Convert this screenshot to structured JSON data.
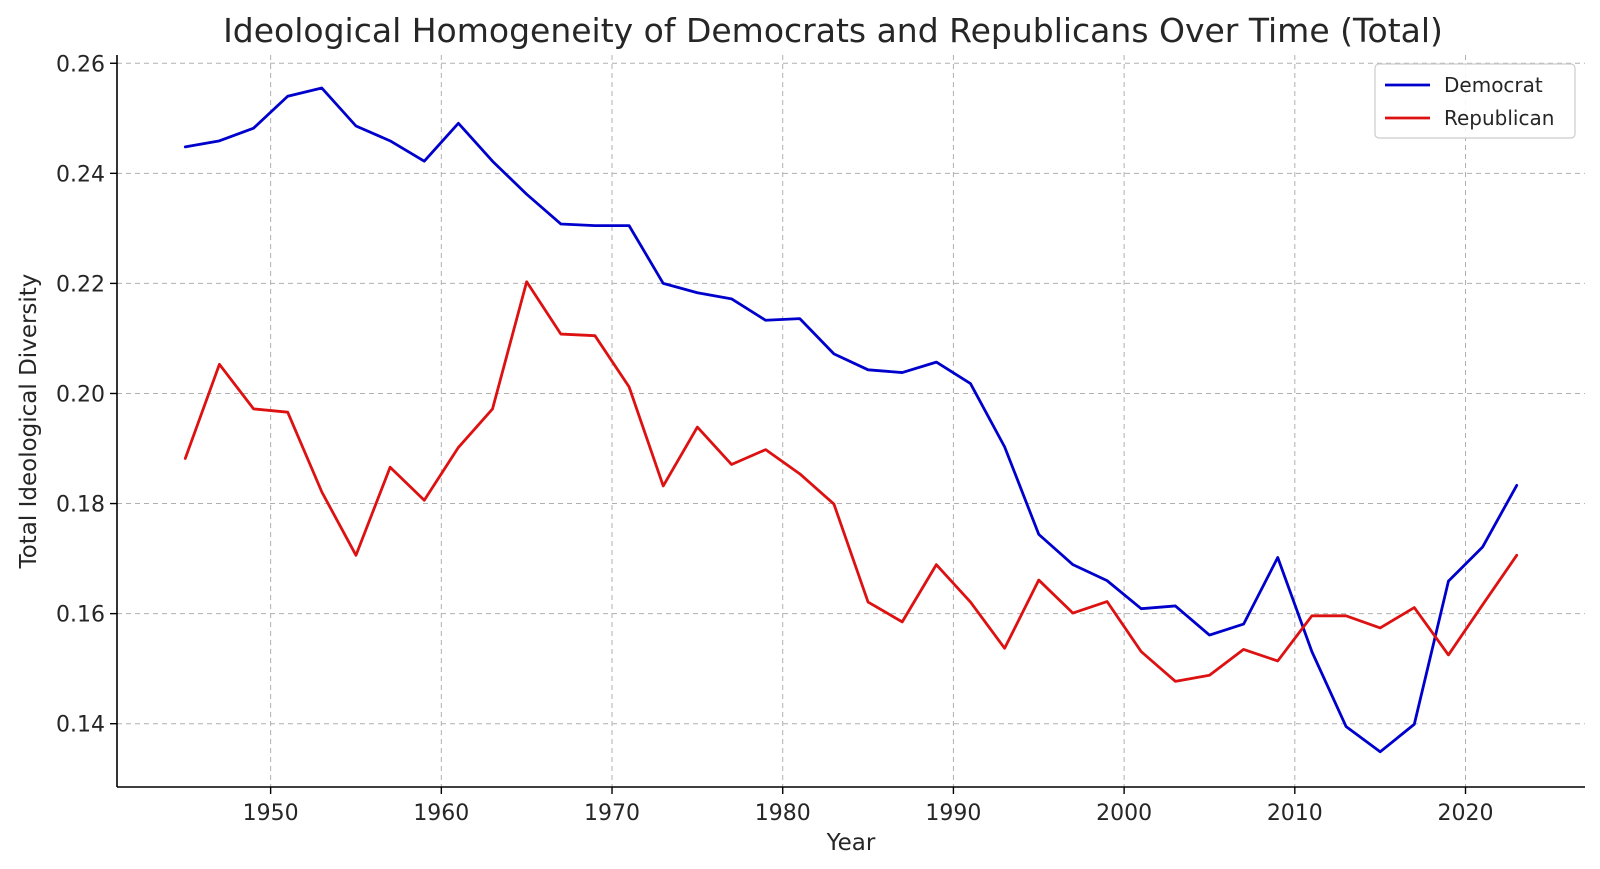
{
  "chart_data": {
    "type": "line",
    "title": "Ideological Homogeneity of Democrats and Republicans Over Time (Total)",
    "xlabel": "Year",
    "ylabel": "Total Ideological Diversity",
    "xlim": [
      1941,
      2027
    ],
    "ylim": [
      0.1285,
      0.2615
    ],
    "xticks": [
      1950,
      1960,
      1970,
      1980,
      1990,
      2000,
      2010,
      2020
    ],
    "yticks": [
      0.14,
      0.16,
      0.18,
      0.2,
      0.22,
      0.24,
      0.26
    ],
    "ytick_labels": [
      "0.14",
      "0.16",
      "0.18",
      "0.20",
      "0.22",
      "0.24",
      "0.26"
    ],
    "grid": true,
    "legend_position": "top-right",
    "x": [
      1945,
      1947,
      1949,
      1951,
      1953,
      1955,
      1957,
      1959,
      1961,
      1963,
      1965,
      1967,
      1969,
      1971,
      1973,
      1975,
      1977,
      1979,
      1981,
      1983,
      1985,
      1987,
      1989,
      1991,
      1993,
      1995,
      1997,
      1999,
      2001,
      2003,
      2005,
      2007,
      2009,
      2011,
      2013,
      2015,
      2017,
      2019,
      2021,
      2023
    ],
    "series": [
      {
        "name": "Democrat",
        "color": "#0000cc",
        "values": [
          0.2448,
          0.2459,
          0.2482,
          0.254,
          0.2555,
          0.2486,
          0.2459,
          0.2422,
          0.2491,
          0.2422,
          0.2362,
          0.2308,
          0.2305,
          0.2305,
          0.22,
          0.2183,
          0.2172,
          0.2133,
          0.2136,
          0.2072,
          0.2043,
          0.2038,
          0.2057,
          0.2018,
          0.1903,
          0.1744,
          0.1689,
          0.166,
          0.1609,
          0.1614,
          0.1561,
          0.1581,
          0.1702,
          0.1531,
          0.1395,
          0.1349,
          0.1399,
          0.1659,
          0.1721,
          0.1833
        ]
      },
      {
        "name": "Republican",
        "color": "#dd1111",
        "values": [
          0.1882,
          0.2053,
          0.1972,
          0.1966,
          0.1821,
          0.1706,
          0.1866,
          0.1806,
          0.1902,
          0.1972,
          0.2203,
          0.2108,
          0.2105,
          0.2012,
          0.1832,
          0.1939,
          0.1871,
          0.1898,
          0.1854,
          0.1799,
          0.1621,
          0.1585,
          0.1689,
          0.1621,
          0.1537,
          0.1661,
          0.1601,
          0.1622,
          0.1531,
          0.1477,
          0.1488,
          0.1535,
          0.1514,
          0.1596,
          0.1596,
          0.1574,
          0.1611,
          0.1525,
          0.1616,
          0.1706
        ]
      }
    ]
  }
}
